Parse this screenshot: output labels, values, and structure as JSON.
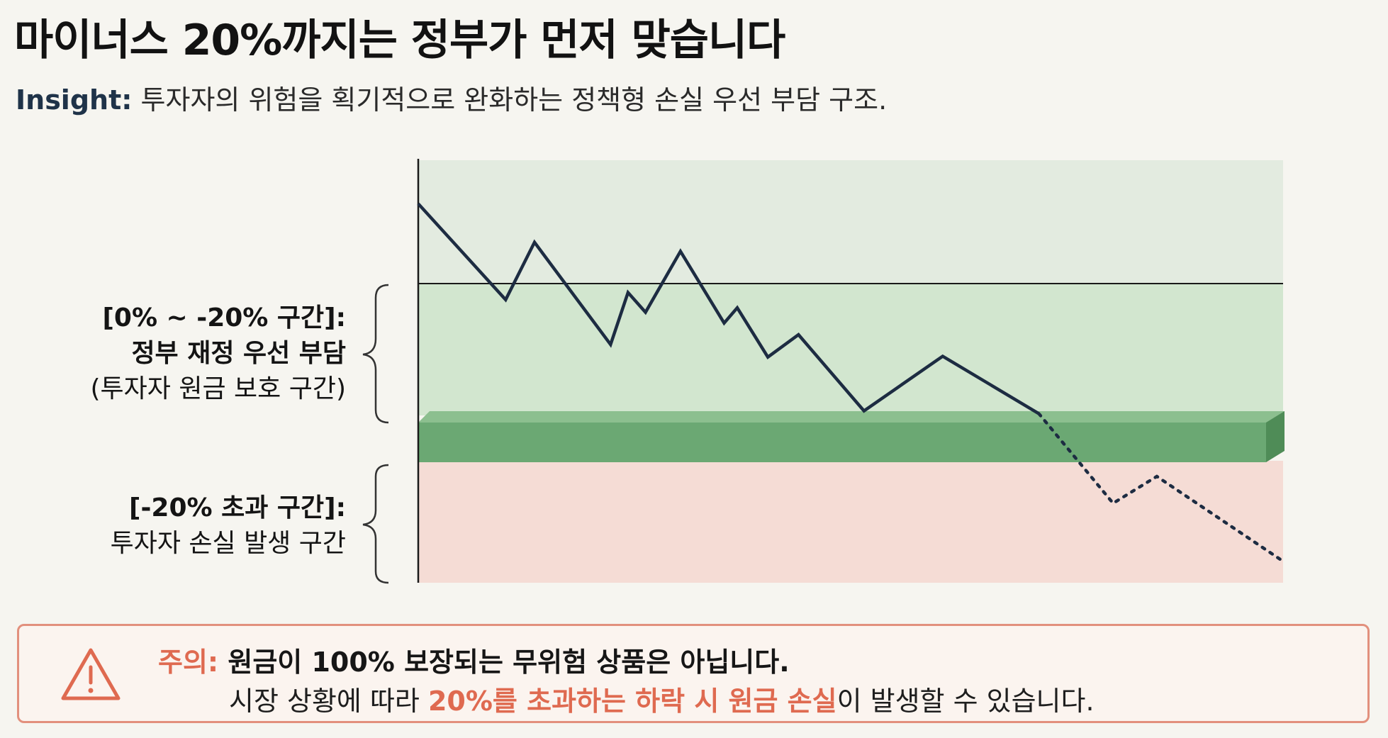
{
  "title": "마이너스 20%까지는 정부가 먼저 맞습니다",
  "insight": {
    "label": "Insight:",
    "text": "투자자의 위험을 획기적으로 완화하는 정책형 손실 우선 부담 구조."
  },
  "chart_data": {
    "type": "line",
    "series": [
      {
        "style": "solid",
        "points": [
          [
            0,
            0.89
          ],
          [
            1,
            -0.18
          ],
          [
            1.33,
            0.46
          ],
          [
            2.2,
            -0.68
          ],
          [
            2.4,
            -0.1
          ],
          [
            2.6,
            -0.32
          ],
          [
            3.0,
            0.36
          ],
          [
            3.5,
            -0.44
          ],
          [
            3.65,
            -0.27
          ],
          [
            4.0,
            -0.82
          ],
          [
            4.35,
            -0.57
          ],
          [
            5.1,
            -1.42
          ],
          [
            6.0,
            -0.81
          ],
          [
            7.1,
            -1.45
          ]
        ]
      },
      {
        "style": "dotted",
        "points": [
          [
            7.1,
            -1.45
          ],
          [
            7.95,
            -2.45
          ],
          [
            8.45,
            -2.15
          ],
          [
            9.9,
            -3.1
          ]
        ]
      }
    ],
    "zones": [
      {
        "name": "reference",
        "from": 0,
        "to": 1.6,
        "color": "#e3ebe0"
      },
      {
        "name": "government-first-loss",
        "from": -1.6,
        "to": 0,
        "color": "#d2e6cf"
      },
      {
        "name": "investor-loss",
        "from": -3.2,
        "to": -1.6,
        "color": "#f5dcd5"
      }
    ],
    "threshold_band_color": "#6ba873",
    "line_color": "#1d2c42",
    "baseline": 0
  },
  "annotations": {
    "upper": {
      "line1": "[0% ~ -20% 구간]:",
      "line2": "정부 재정 우선 부담",
      "line3": "(투자자 원금 보호 구간)"
    },
    "lower": {
      "line1": "[-20% 초과 구간]:",
      "line2": "투자자 손실 발생 구간"
    }
  },
  "warning": {
    "label": "주의:",
    "line1": "원금이 100% 보장되는 무위험 상품은 아닙니다.",
    "line2_pre": "시장 상황에 따라 ",
    "line2_highlight": "20%를 초과하는 하락 시 원금 손실",
    "line2_post": "이 발생할 수 있습니다.",
    "icon": "warning-triangle-icon",
    "accent_color": "#df6a50"
  }
}
